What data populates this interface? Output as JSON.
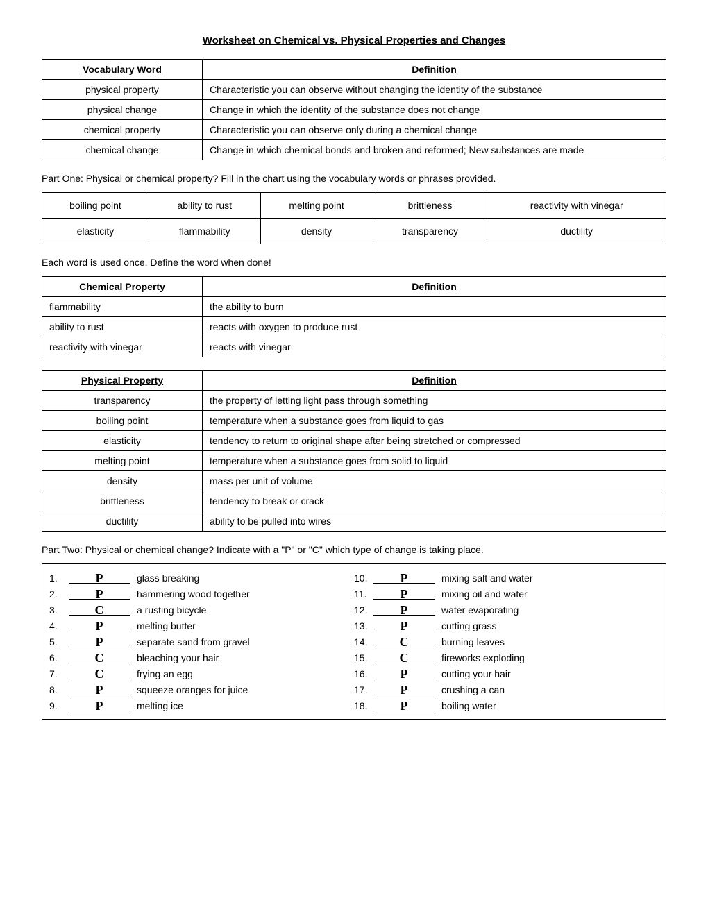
{
  "title": "Worksheet on Chemical vs. Physical Properties and Changes",
  "vocab_table": {
    "headers": [
      "Vocabulary Word",
      "Definition"
    ],
    "rows": [
      [
        "physical property",
        "Characteristic you can observe without changing the identity of the substance"
      ],
      [
        "physical change",
        "Change in which the identity of the substance does not change"
      ],
      [
        "chemical property",
        "Characteristic you can observe only during a chemical change"
      ],
      [
        "chemical change",
        "Change in which chemical bonds and broken and reformed; New substances are made"
      ]
    ]
  },
  "part_one_intro": "Part One: Physical or chemical property? Fill in the chart using the vocabulary words or phrases provided.",
  "word_bank": {
    "rows": [
      [
        "boiling point",
        "ability to rust",
        "melting point",
        "brittleness",
        "reactivity with vinegar"
      ],
      [
        "elasticity",
        "flammability",
        "density",
        "transparency",
        "ductility"
      ]
    ]
  },
  "each_word_note": "Each word is used once. Define the word when done!",
  "chem_prop_table": {
    "headers": [
      "Chemical Property",
      "Definition"
    ],
    "rows": [
      [
        "flammability",
        "the ability to burn"
      ],
      [
        "ability to rust",
        "reacts with oxygen to produce rust"
      ],
      [
        "reactivity with vinegar",
        "reacts with vinegar"
      ]
    ]
  },
  "phys_prop_table": {
    "headers": [
      "Physical Property",
      "Definition"
    ],
    "rows": [
      [
        "transparency",
        "the property of letting light pass through something"
      ],
      [
        "boiling point",
        "temperature when a substance goes from liquid to gas"
      ],
      [
        "elasticity",
        "tendency to return to original shape after being stretched or compressed"
      ],
      [
        "melting point",
        "temperature when a substance goes from solid to liquid"
      ],
      [
        "density",
        "mass per unit of volume"
      ],
      [
        "brittleness",
        "tendency to break or crack"
      ],
      [
        "ductility",
        "ability to be pulled into wires"
      ]
    ]
  },
  "part_two_intro": "Part Two: Physical or chemical change? Indicate with a \"P\" or \"C\" which type of change is taking place.",
  "part_two_left": [
    {
      "n": "1.",
      "ans": "P",
      "desc": "glass breaking"
    },
    {
      "n": "2.",
      "ans": "P",
      "desc": "hammering wood together"
    },
    {
      "n": "3.",
      "ans": "C",
      "desc": "a rusting bicycle"
    },
    {
      "n": "4.",
      "ans": "P",
      "desc": "melting butter"
    },
    {
      "n": "5.",
      "ans": "P",
      "desc": "separate sand from gravel"
    },
    {
      "n": "6.",
      "ans": "C",
      "desc": "bleaching your hair"
    },
    {
      "n": "7.",
      "ans": "C",
      "desc": "frying an egg"
    },
    {
      "n": "8.",
      "ans": "P",
      "desc": "squeeze oranges for juice"
    },
    {
      "n": "9.",
      "ans": "P",
      "desc": "melting ice"
    }
  ],
  "part_two_right": [
    {
      "n": "10.",
      "ans": "P",
      "desc": "mixing salt and water"
    },
    {
      "n": "11.",
      "ans": "P",
      "desc": "mixing oil and water"
    },
    {
      "n": "12.",
      "ans": "P",
      "desc": "water evaporating"
    },
    {
      "n": "13.",
      "ans": "P",
      "desc": "cutting grass"
    },
    {
      "n": "14.",
      "ans": "C",
      "desc": "burning leaves"
    },
    {
      "n": "15.",
      "ans": "C",
      "desc": "fireworks exploding"
    },
    {
      "n": "16.",
      "ans": "P",
      "desc": "cutting your hair"
    },
    {
      "n": "17.",
      "ans": "P",
      "desc": "crushing a can"
    },
    {
      "n": "18.",
      "ans": "P",
      "desc": "boiling water"
    }
  ]
}
